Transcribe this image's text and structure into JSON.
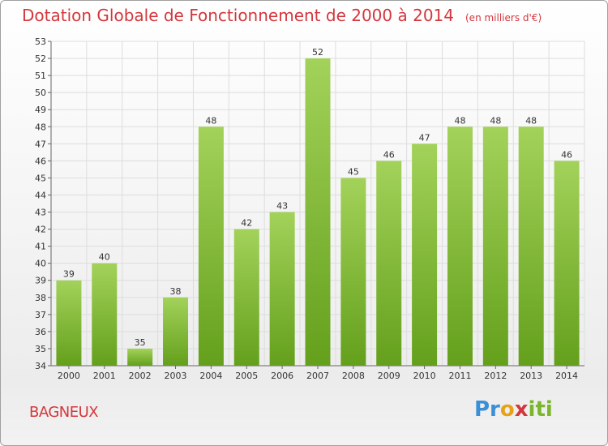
{
  "chart_data": {
    "type": "bar",
    "title": "Dotation Globale de Fonctionnement de 2000 à 2014",
    "subtitle": "(en milliers d'€)",
    "categories": [
      "2000",
      "2001",
      "2002",
      "2003",
      "2004",
      "2005",
      "2006",
      "2007",
      "2008",
      "2009",
      "2010",
      "2011",
      "2012",
      "2013",
      "2014"
    ],
    "values": [
      39,
      40,
      35,
      38,
      48,
      42,
      43,
      52,
      45,
      46,
      47,
      48,
      48,
      48,
      46
    ],
    "xlabel": "",
    "ylabel": "",
    "ylim": [
      34,
      53
    ],
    "yticks": [
      34,
      35,
      36,
      37,
      38,
      39,
      40,
      41,
      42,
      43,
      44,
      45,
      46,
      47,
      48,
      49,
      50,
      51,
      52,
      53
    ],
    "grid": true,
    "bar_color": "#7ab52a"
  },
  "footer": {
    "commune": "BAGNEUX",
    "logo": {
      "p1": "Pr",
      "p2": "o",
      "p3": "x",
      "p4": "iti"
    }
  },
  "colors": {
    "title": "#d4363c",
    "bar_light": "#a3d25a",
    "bar_dark": "#64a01c"
  }
}
